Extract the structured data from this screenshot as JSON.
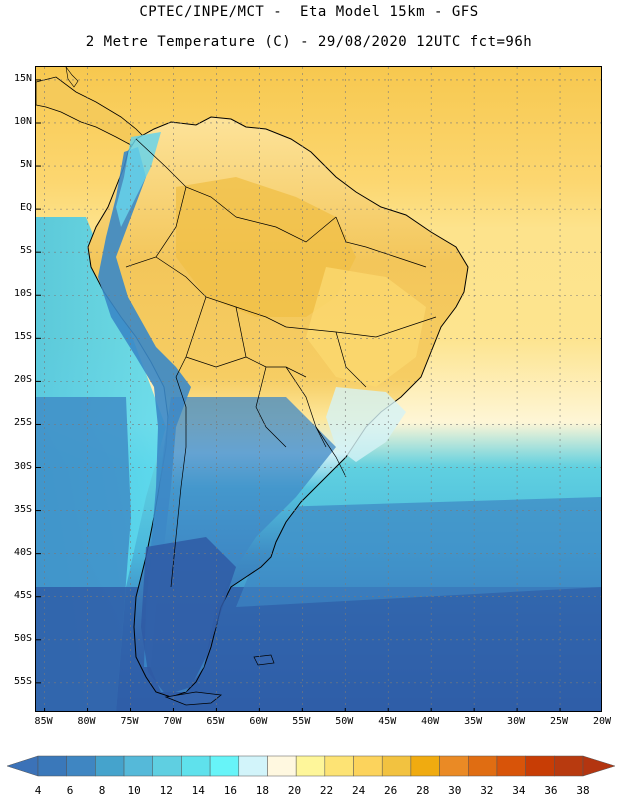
{
  "header": {
    "line1": "CPTEC/INPE/MCT -  Eta Model 15km - GFS",
    "line2": "2 Metre Temperature (C) - 29/08/2020 12UTC fct=96h"
  },
  "axes": {
    "lat_labels": [
      "15N",
      "10N",
      "5N",
      "EQ",
      "5S",
      "10S",
      "15S",
      "20S",
      "25S",
      "30S",
      "35S",
      "40S",
      "45S",
      "50S",
      "55S"
    ],
    "lon_labels": [
      "85W",
      "80W",
      "75W",
      "70W",
      "65W",
      "60W",
      "55W",
      "50W",
      "45W",
      "40W",
      "35W",
      "30W",
      "25W",
      "20W"
    ],
    "lat_range": [
      16.5,
      -58.5
    ],
    "lon_range": [
      -86,
      -20
    ],
    "grid": "dotted"
  },
  "colorbar": {
    "labels": [
      "4",
      "6",
      "8",
      "10",
      "12",
      "14",
      "16",
      "18",
      "20",
      "22",
      "24",
      "26",
      "28",
      "30",
      "32",
      "34",
      "36",
      "38"
    ],
    "colors": [
      "#3a78ba",
      "#3f86c2",
      "#45a3cc",
      "#55b9d9",
      "#5fcfe1",
      "#5fe1ec",
      "#67f4f8",
      "#d2f4fa",
      "#fff8e0",
      "#fef69a",
      "#fde374",
      "#fcd35c",
      "#f2c240",
      "#f0ab10",
      "#ea8a25",
      "#e06d12",
      "#d85409",
      "#c83d05",
      "#b83a0f"
    ],
    "under_color": "#3b72b8",
    "over_color": "#b33510"
  },
  "map_colors": {
    "ocean_south": "#2f5ea8",
    "ocean_mid": "#3d87c4",
    "ocean_cool": "#4bb6dc",
    "ocean_warm": "#52d1e4",
    "ocean_trop": "#fdd873",
    "ocean_hot": "#f2c349",
    "land_hot": "#f0c24a",
    "land_warm": "#fde08a",
    "andes": "#3a88c8",
    "patagonia": "#3465ad",
    "border": "#000000",
    "grid": "#7a7a7a"
  }
}
